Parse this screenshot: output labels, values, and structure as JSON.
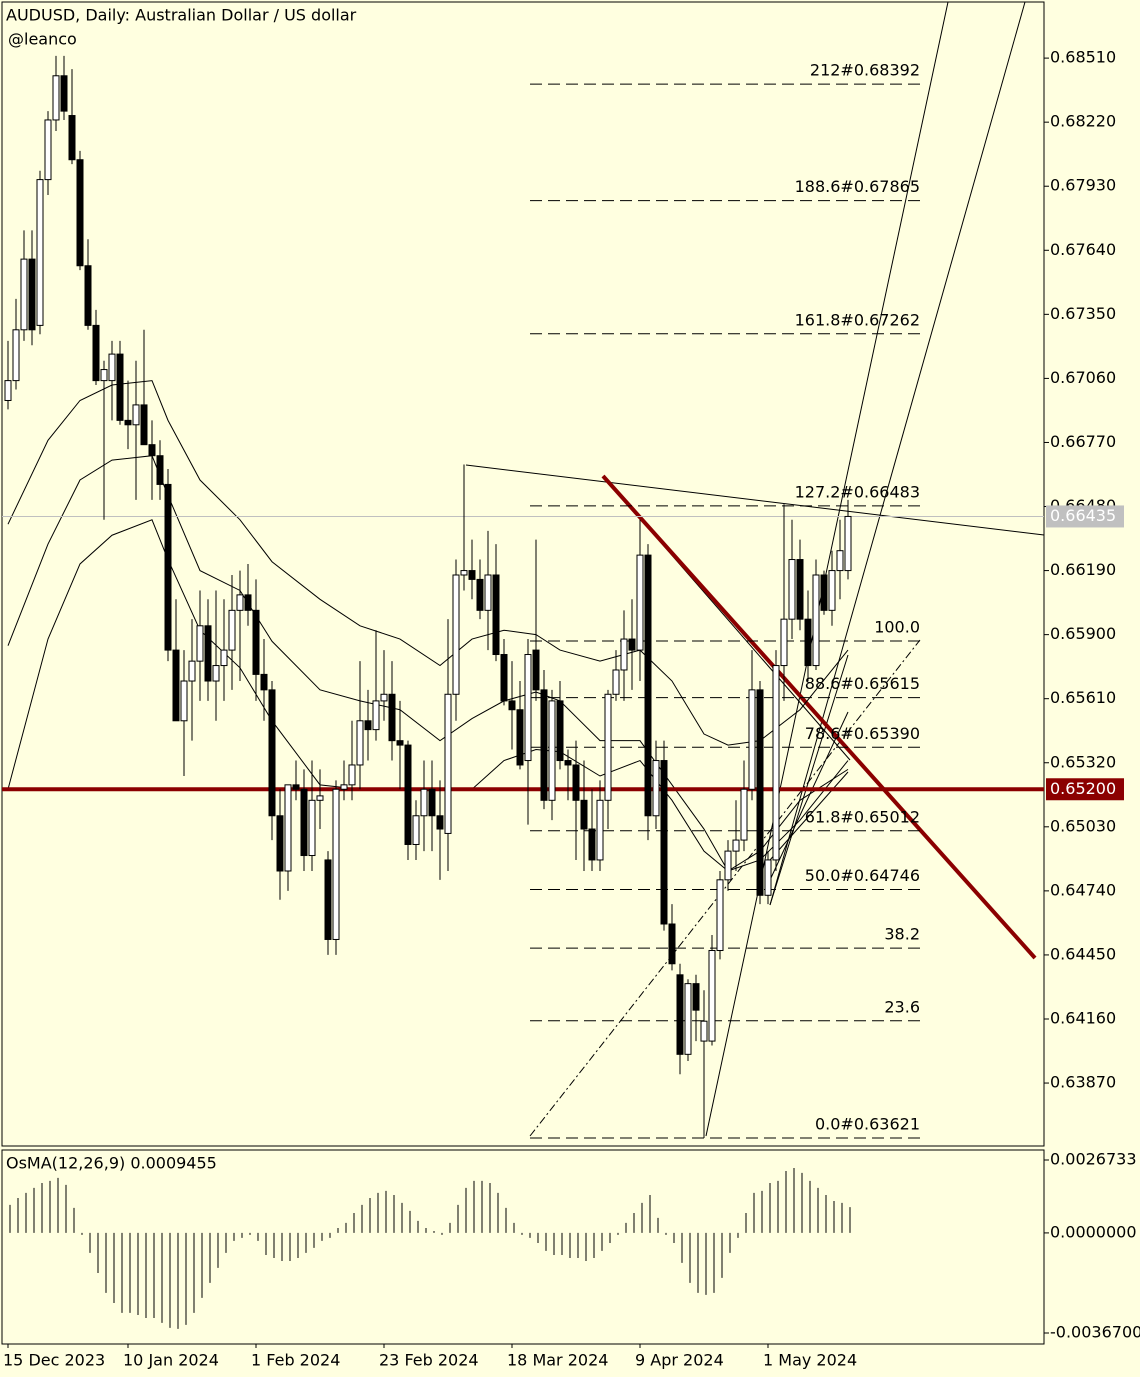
{
  "chart_data": {
    "type": "candlestick",
    "title": "AUDUSD, Daily:  Australian Dollar / US dollar",
    "subtitle": "@leanco",
    "categories": [
      "15 Dec 2023",
      null,
      null,
      null,
      null,
      null,
      null,
      null,
      null,
      null,
      null,
      null,
      null,
      null,
      null,
      "10 Jan 2024",
      null,
      null,
      null,
      null,
      null,
      null,
      null,
      null,
      null,
      null,
      null,
      null,
      null,
      null,
      null,
      "1 Feb 2024",
      null,
      null,
      null,
      null,
      null,
      null,
      null,
      null,
      null,
      null,
      null,
      null,
      null,
      null,
      null,
      "23 Feb 2024",
      null,
      null,
      null,
      null,
      null,
      null,
      null,
      null,
      null,
      null,
      null,
      null,
      null,
      null,
      null,
      "18 Mar 2024",
      null,
      null,
      null,
      null,
      null,
      null,
      null,
      null,
      null,
      null,
      null,
      null,
      null,
      null,
      null,
      "9 Apr 2024",
      null,
      null,
      null,
      null,
      null,
      null,
      null,
      null,
      null,
      null,
      null,
      null,
      null,
      null,
      null,
      "1 May 2024",
      null,
      null,
      null,
      null,
      null,
      null,
      null,
      null,
      null,
      null
    ],
    "open": [
      0.6696,
      0.6705,
      0.6728,
      0.676,
      0.673,
      0.6796,
      0.6823,
      0.6843,
      0.6825,
      0.6805,
      0.6757,
      0.673,
      0.6705,
      0.6705,
      0.6717,
      0.6687,
      0.6685,
      0.6694,
      0.6676,
      0.6671,
      0.6658,
      0.6583,
      0.6551,
      0.6569,
      0.6578,
      0.6594,
      0.6569,
      0.6576,
      0.6583,
      0.6601,
      0.6608,
      0.6601,
      0.6572,
      0.6565,
      0.6508,
      0.6483,
      0.6522,
      0.652,
      0.649,
      0.6515,
      0.6488,
      0.6452,
      0.652,
      0.6522,
      0.6531,
      0.6551,
      0.6547,
      0.656,
      0.6563,
      0.6542,
      0.654,
      0.6495,
      0.6508,
      0.652,
      0.6508,
      0.65,
      0.6563,
      0.6617,
      0.6619,
      0.6615,
      0.6601,
      0.6617,
      0.6581,
      0.656,
      0.6556,
      0.6533,
      0.6583,
      0.6565,
      0.6515,
      0.656,
      0.6533,
      0.6531,
      0.6515,
      0.6502,
      0.6488,
      0.6515,
      0.6563,
      0.6574,
      0.6588,
      0.6583,
      0.6626,
      0.6508,
      0.6533,
      0.6459,
      0.6436,
      0.64,
      0.6432,
      0.6406,
      0.6406,
      0.6447,
      0.6479,
      0.6492,
      0.6497,
      0.652,
      0.6565,
      0.6472,
      0.6488,
      0.6576,
      0.6597,
      0.6624,
      0.6597,
      0.6576,
      0.6617,
      0.6601,
      0.6619,
      0.6619
    ],
    "high": [
      0.6723,
      0.6742,
      0.6773,
      0.6773,
      0.68,
      0.6827,
      0.6852,
      0.6852,
      0.6846,
      0.6809,
      0.6769,
      0.6737,
      0.6714,
      0.6723,
      0.6723,
      0.6705,
      0.6714,
      0.6728,
      0.6687,
      0.6678,
      0.6665,
      0.6606,
      0.6583,
      0.6597,
      0.661,
      0.6606,
      0.661,
      0.6606,
      0.6617,
      0.6619,
      0.6622,
      0.6615,
      0.6588,
      0.6569,
      0.652,
      0.652,
      0.6533,
      0.6529,
      0.6533,
      0.6529,
      0.6492,
      0.6524,
      0.6533,
      0.6551,
      0.6578,
      0.6565,
      0.6592,
      0.6583,
      0.6578,
      0.656,
      0.6542,
      0.6515,
      0.6533,
      0.6533,
      0.6524,
      0.6597,
      0.6624,
      0.6667,
      0.6633,
      0.6624,
      0.6637,
      0.6631,
      0.6588,
      0.6578,
      0.6569,
      0.6588,
      0.6633,
      0.6574,
      0.6565,
      0.6569,
      0.6538,
      0.6542,
      0.6533,
      0.652,
      0.6524,
      0.6565,
      0.6583,
      0.6601,
      0.6606,
      0.6642,
      0.6631,
      0.6542,
      0.6542,
      0.6468,
      0.6441,
      0.6434,
      0.6436,
      0.6429,
      0.6454,
      0.6483,
      0.6497,
      0.6515,
      0.6533,
      0.6583,
      0.6569,
      0.6492,
      0.6583,
      0.6649,
      0.6642,
      0.6633,
      0.661,
      0.6624,
      0.6619,
      0.6628,
      0.6642,
      0.6651
    ],
    "low": [
      0.6692,
      0.6701,
      0.6723,
      0.6721,
      0.6726,
      0.6789,
      0.6818,
      0.6823,
      0.6803,
      0.6755,
      0.6728,
      0.6703,
      0.6642,
      0.6687,
      0.6685,
      0.6674,
      0.6651,
      0.6676,
      0.6651,
      0.6651,
      0.6578,
      0.6551,
      0.6526,
      0.6542,
      0.656,
      0.656,
      0.6551,
      0.656,
      0.6565,
      0.6569,
      0.6594,
      0.656,
      0.6551,
      0.6497,
      0.647,
      0.6474,
      0.6515,
      0.6483,
      0.6483,
      0.6502,
      0.6445,
      0.6445,
      0.6515,
      0.6515,
      0.652,
      0.6533,
      0.6542,
      0.6551,
      0.6533,
      0.652,
      0.6488,
      0.6488,
      0.6492,
      0.6492,
      0.6479,
      0.6483,
      0.6551,
      0.661,
      0.6606,
      0.6597,
      0.6583,
      0.6578,
      0.6558,
      0.6538,
      0.6529,
      0.6504,
      0.656,
      0.6511,
      0.6506,
      0.6529,
      0.6515,
      0.6488,
      0.6483,
      0.6483,
      0.6483,
      0.6502,
      0.656,
      0.656,
      0.6565,
      0.6569,
      0.6497,
      0.6502,
      0.6456,
      0.6438,
      0.6391,
      0.6397,
      0.6406,
      0.63621,
      0.6404,
      0.6443,
      0.6474,
      0.6483,
      0.6492,
      0.6515,
      0.6468,
      0.6468,
      0.6483,
      0.656,
      0.6588,
      0.6592,
      0.6569,
      0.6574,
      0.6599,
      0.6594,
      0.6606,
      0.6615
    ],
    "close": [
      0.6705,
      0.6728,
      0.676,
      0.6728,
      0.6796,
      0.6823,
      0.6843,
      0.6827,
      0.6805,
      0.6757,
      0.673,
      0.6705,
      0.671,
      0.6717,
      0.6687,
      0.6685,
      0.6694,
      0.6676,
      0.6671,
      0.6658,
      0.6583,
      0.6551,
      0.6569,
      0.6578,
      0.6594,
      0.6569,
      0.6576,
      0.6583,
      0.6601,
      0.6608,
      0.6601,
      0.6572,
      0.6565,
      0.6508,
      0.6483,
      0.6522,
      0.652,
      0.649,
      0.6515,
      0.6517,
      0.6452,
      0.652,
      0.6522,
      0.6531,
      0.6551,
      0.6547,
      0.656,
      0.6563,
      0.6542,
      0.654,
      0.6495,
      0.6508,
      0.652,
      0.6508,
      0.6502,
      0.6563,
      0.6617,
      0.6619,
      0.6615,
      0.6601,
      0.6617,
      0.6581,
      0.656,
      0.6556,
      0.6531,
      0.6581,
      0.6565,
      0.6515,
      0.656,
      0.6533,
      0.6531,
      0.6515,
      0.6502,
      0.6488,
      0.6515,
      0.6563,
      0.6574,
      0.6588,
      0.6583,
      0.6626,
      0.6508,
      0.6533,
      0.6459,
      0.6441,
      0.64,
      0.6432,
      0.642,
      0.6415,
      0.6447,
      0.6479,
      0.6492,
      0.6497,
      0.652,
      0.6565,
      0.6472,
      0.6488,
      0.6576,
      0.6597,
      0.6624,
      0.6597,
      0.6576,
      0.6617,
      0.6601,
      0.6619,
      0.6628,
      0.66435
    ],
    "bull_color": "#ffffff",
    "bear_color": "#000000",
    "ylim": [
      0.63585,
      0.68764
    ],
    "yticks": [
      {
        "value": 0.6851,
        "label": "0.68510"
      },
      {
        "value": 0.6822,
        "label": "0.68220"
      },
      {
        "value": 0.6793,
        "label": "0.67930"
      },
      {
        "value": 0.6764,
        "label": "0.67640"
      },
      {
        "value": 0.6735,
        "label": "0.67350"
      },
      {
        "value": 0.6706,
        "label": "0.67060"
      },
      {
        "value": 0.6677,
        "label": "0.66770"
      },
      {
        "value": 0.6648,
        "label": "0.66480"
      },
      {
        "value": 0.6619,
        "label": "0.66190"
      },
      {
        "value": 0.659,
        "label": "0.65900"
      },
      {
        "value": 0.6561,
        "label": "0.65610"
      },
      {
        "value": 0.6532,
        "label": "0.65320"
      },
      {
        "value": 0.6503,
        "label": "0.65030"
      },
      {
        "value": 0.6474,
        "label": "0.64740"
      },
      {
        "value": 0.6445,
        "label": "0.64450"
      },
      {
        "value": 0.6416,
        "label": "0.64160"
      },
      {
        "value": 0.6387,
        "label": "0.63870"
      }
    ],
    "grid": false,
    "overlays": [
      {
        "x": [
          0,
          5,
          9,
          13,
          18,
          20,
          24,
          29,
          33,
          39,
          44,
          49,
          54,
          58,
          62,
          66,
          69,
          74,
          79,
          83,
          87,
          90,
          94,
          99,
          105
        ],
        "values": [
          0.664,
          0.6678,
          0.6696,
          0.6703,
          0.6705,
          0.6687,
          0.666,
          0.6642,
          0.6623,
          0.6606,
          0.6594,
          0.6588,
          0.6576,
          0.6588,
          0.6592,
          0.659,
          0.6583,
          0.6578,
          0.6583,
          0.6569,
          0.6545,
          0.654,
          0.6542,
          0.6556,
          0.6583
        ]
      },
      {
        "x": [
          0,
          5,
          9,
          13,
          18,
          20,
          24,
          29,
          33,
          39,
          44,
          49,
          54,
          58,
          62,
          66,
          69,
          74,
          79,
          83,
          87,
          90,
          94,
          99,
          105
        ],
        "values": [
          0.6585,
          0.6631,
          0.666,
          0.6669,
          0.6671,
          0.6653,
          0.6619,
          0.661,
          0.6587,
          0.6565,
          0.656,
          0.6556,
          0.6542,
          0.6552,
          0.656,
          0.6564,
          0.656,
          0.6542,
          0.6542,
          0.6522,
          0.6502,
          0.6483,
          0.6488,
          0.6506,
          0.6533
        ]
      },
      {
        "x": [
          0,
          5,
          9,
          13,
          18,
          20,
          24,
          29,
          33,
          39,
          44,
          49,
          54,
          58,
          62,
          66,
          69,
          74,
          79,
          83,
          87,
          90,
          94,
          99,
          105
        ],
        "values": [
          0.652,
          0.6588,
          0.6622,
          0.6635,
          0.6642,
          0.6624,
          0.6592,
          0.6575,
          0.6551,
          0.6522,
          0.652,
          0.652,
          0.652,
          0.652,
          0.6533,
          0.6538,
          0.6537,
          0.6526,
          0.6533,
          0.6515,
          0.6492,
          0.6483,
          0.6492,
          0.6515,
          0.6529
        ]
      }
    ],
    "overlay_color": "#000000",
    "fib_levels": [
      {
        "label": "212#0.68392",
        "value": 0.68392
      },
      {
        "label": "188.6#0.67865",
        "value": 0.67865
      },
      {
        "label": "161.8#0.67262",
        "value": 0.67262
      },
      {
        "label": "127.2#0.66483",
        "value": 0.66483
      },
      {
        "label": "100.0",
        "value": 0.65871
      },
      {
        "label": "88.6#0.65615",
        "value": 0.65615
      },
      {
        "label": "78.6#0.65390",
        "value": 0.6539
      },
      {
        "label": "61.8#0.65012",
        "value": 0.65012
      },
      {
        "label": "50.0#0.64746",
        "value": 0.64746
      },
      {
        "label": "38.2",
        "value": 0.64481
      },
      {
        "label": "23.6",
        "value": 0.64152
      },
      {
        "label": "0.0#0.63621",
        "value": 0.63621
      }
    ],
    "horizontal_line": {
      "value": 0.652,
      "label": "0.65200",
      "color": "#8b0000"
    },
    "current_price": {
      "value": 0.66435,
      "color": "#c0c0c0"
    },
    "oscillator": {
      "type": "histogram",
      "title": "OsMA(12,26,9) 0.0009455",
      "values": [
        0.00103,
        0.00128,
        0.00147,
        0.00165,
        0.00183,
        0.00191,
        0.00202,
        0.00176,
        0.00092,
        -7e-05,
        -0.00073,
        -0.00147,
        -0.0022,
        -0.00257,
        -0.00293,
        -0.00293,
        -0.00301,
        -0.00312,
        -0.00312,
        -0.0033,
        -0.00348,
        -0.00352,
        -0.00337,
        -0.00293,
        -0.00238,
        -0.00183,
        -0.00128,
        -0.00073,
        -0.00029,
        -0.00018,
        -7e-05,
        -0.00029,
        -0.00081,
        -0.00092,
        -0.00103,
        -0.00103,
        -0.00092,
        -0.00073,
        -0.00055,
        -0.00029,
        -0.00018,
        0.00018,
        0.00037,
        0.00073,
        0.00103,
        0.00128,
        0.00147,
        0.00154,
        0.00139,
        0.0011,
        0.00081,
        0.00044,
        0.00018,
        7e-05,
        -7e-05,
        0.00037,
        0.00103,
        0.00165,
        0.00191,
        0.00191,
        0.00183,
        0.00147,
        0.00092,
        0.00037,
        -7e-05,
        -0.00018,
        -0.00037,
        -0.00066,
        -0.00081,
        -0.00081,
        -0.00092,
        -0.00092,
        -0.00103,
        -0.00092,
        -0.00066,
        -0.00037,
        -7e-05,
        0.00037,
        0.00073,
        0.0011,
        0.00139,
        0.00055,
        -7e-05,
        -0.00037,
        -0.0011,
        -0.00183,
        -0.0022,
        -0.00227,
        -0.0022,
        -0.00165,
        -0.00073,
        -0.00018,
        0.00073,
        0.00147,
        0.00154,
        0.00183,
        0.00191,
        0.00227,
        0.00238,
        0.0022,
        0.00191,
        0.00165,
        0.00139,
        0.00117,
        0.0011,
        0.0009455
      ],
      "color": "#000000",
      "ylim": [
        -0.004073,
        0.00304
      ],
      "yticks": [
        0.0026733,
        {
          "value": 0,
          "label": "0.0000000"
        },
        {
          "value": -0.00367,
          "label": "-0.0036700"
        }
      ]
    }
  }
}
